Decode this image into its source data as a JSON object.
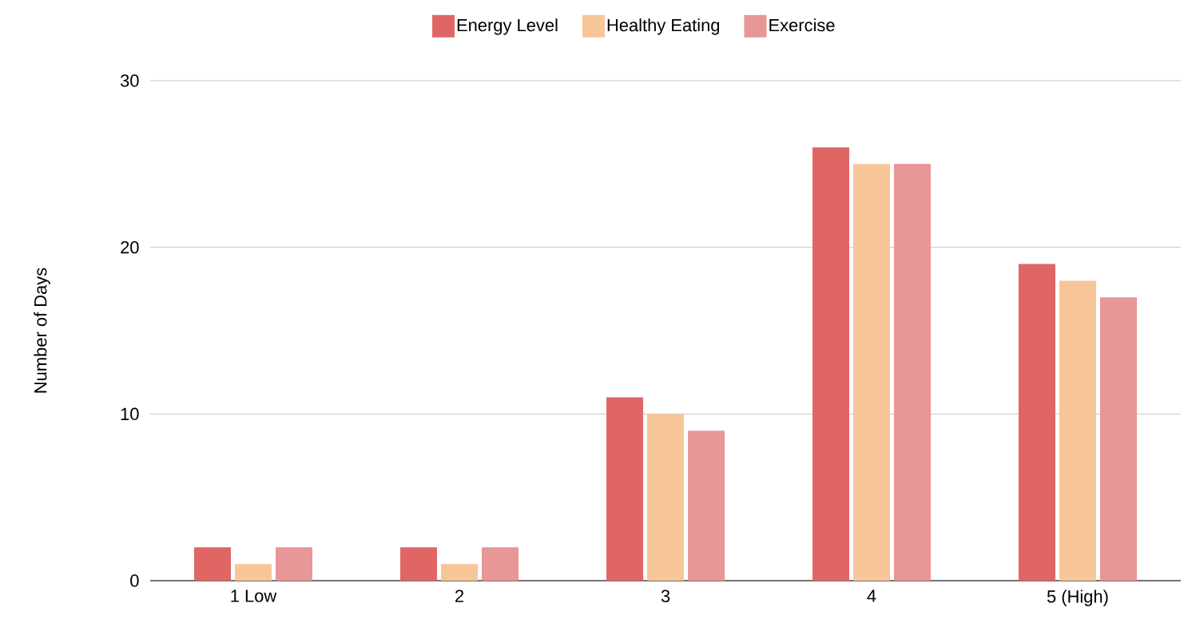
{
  "chart_data": {
    "type": "bar",
    "categories": [
      "1 Low",
      "2",
      "3",
      "4",
      "5 (High)"
    ],
    "series": [
      {
        "name": "Energy Level",
        "color": "#e06666",
        "values": [
          2,
          2,
          11,
          26,
          19
        ]
      },
      {
        "name": "Healthy Eating",
        "color": "#f6c699",
        "values": [
          1,
          1,
          10,
          25,
          18
        ]
      },
      {
        "name": "Exercise",
        "color": "#e89696",
        "values": [
          2,
          2,
          9,
          25,
          17
        ]
      }
    ],
    "ylabel": "Number of Days",
    "ylim": [
      0,
      30
    ],
    "yticks": [
      0,
      10,
      20,
      30
    ],
    "grid": "y",
    "legend": "top"
  }
}
